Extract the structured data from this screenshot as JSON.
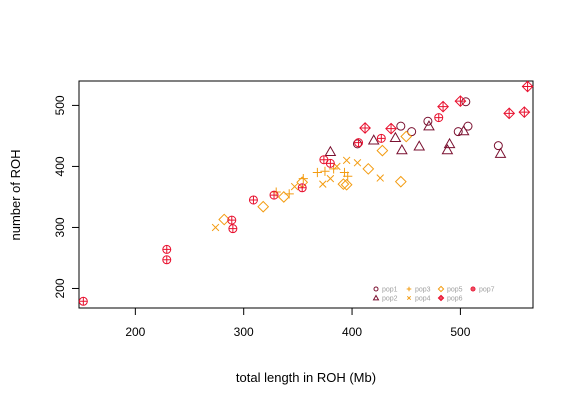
{
  "chart_data": {
    "type": "scatter",
    "title": "",
    "xlabel": "total length in ROH (Mb)",
    "ylabel": "number of ROH",
    "xlim": [
      148,
      567
    ],
    "ylim": [
      168,
      540
    ],
    "xticks": [
      200,
      300,
      400,
      500
    ],
    "yticks": [
      200,
      300,
      400,
      500
    ],
    "grid": false,
    "legend_position": "bottom-right",
    "series": [
      {
        "name": "pop1",
        "color": "#7a1030",
        "marker": "circle",
        "points": [
          [
            405,
            437
          ],
          [
            445,
            466
          ],
          [
            455,
            457
          ],
          [
            470,
            474
          ],
          [
            498,
            457
          ],
          [
            505,
            506
          ],
          [
            507,
            466
          ],
          [
            535,
            434
          ]
        ]
      },
      {
        "name": "pop2",
        "color": "#7a1030",
        "marker": "triangle",
        "points": [
          [
            380,
            424
          ],
          [
            420,
            443
          ],
          [
            440,
            447
          ],
          [
            446,
            427
          ],
          [
            462,
            433
          ],
          [
            471,
            466
          ],
          [
            490,
            437
          ],
          [
            488,
            427
          ],
          [
            503,
            458
          ],
          [
            537,
            421
          ]
        ]
      },
      {
        "name": "pop3",
        "color": "#f39c12",
        "marker": "plus",
        "points": [
          [
            330,
            358
          ],
          [
            342,
            355
          ],
          [
            355,
            380
          ],
          [
            368,
            390
          ],
          [
            375,
            392
          ],
          [
            383,
            396
          ],
          [
            393,
            390
          ],
          [
            396,
            384
          ]
        ]
      },
      {
        "name": "pop4",
        "color": "#f39c12",
        "marker": "x",
        "points": [
          [
            274,
            300
          ],
          [
            347,
            367
          ],
          [
            373,
            371
          ],
          [
            380,
            380
          ],
          [
            386,
            400
          ],
          [
            395,
            410
          ],
          [
            405,
            406
          ],
          [
            426,
            381
          ]
        ]
      },
      {
        "name": "pop5",
        "color": "#f39c12",
        "marker": "diamond",
        "points": [
          [
            282,
            313
          ],
          [
            318,
            334
          ],
          [
            337,
            350
          ],
          [
            354,
            374
          ],
          [
            392,
            371
          ],
          [
            395,
            370
          ],
          [
            415,
            396
          ],
          [
            428,
            426
          ],
          [
            445,
            375
          ],
          [
            450,
            449
          ]
        ]
      },
      {
        "name": "pop6",
        "color": "#e8102e",
        "marker": "diamond-plus",
        "points": [
          [
            412,
            463
          ],
          [
            436,
            462
          ],
          [
            484,
            498
          ],
          [
            500,
            507
          ],
          [
            545,
            487
          ],
          [
            559,
            489
          ],
          [
            562,
            531
          ]
        ]
      },
      {
        "name": "pop7",
        "color": "#e8102e",
        "marker": "circle-plus",
        "points": [
          [
            152,
            179
          ],
          [
            229,
            264
          ],
          [
            229,
            247
          ],
          [
            289,
            312
          ],
          [
            290,
            298
          ],
          [
            309,
            345
          ],
          [
            328,
            353
          ],
          [
            354,
            365
          ],
          [
            374,
            411
          ],
          [
            380,
            405
          ],
          [
            406,
            439
          ],
          [
            427,
            446
          ],
          [
            480,
            480
          ]
        ]
      }
    ]
  }
}
